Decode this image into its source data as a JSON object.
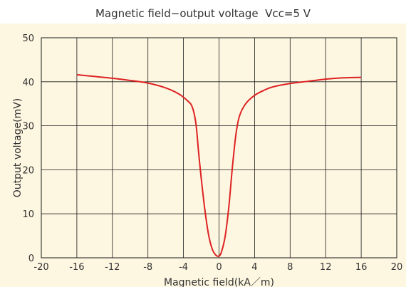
{
  "chart_data": {
    "type": "line",
    "title": "Magnetic field−output voltage  Vcc=5 V",
    "xlabel": "Magnetic field(kA／m)",
    "ylabel": "Output voltage(mV)",
    "xlim": [
      -20,
      20
    ],
    "ylim": [
      0,
      50
    ],
    "x_ticks": [
      -20,
      -16,
      -12,
      -8,
      -4,
      0,
      4,
      8,
      12,
      16,
      20
    ],
    "y_ticks": [
      0,
      10,
      20,
      30,
      40,
      50
    ],
    "grid": true,
    "series": [
      {
        "color": "#dd2222",
        "points": [
          [
            -16,
            41.6
          ],
          [
            -14,
            41.2
          ],
          [
            -12,
            40.8
          ],
          [
            -10,
            40.3
          ],
          [
            -8,
            39.7
          ],
          [
            -6,
            38.6
          ],
          [
            -4.5,
            37.2
          ],
          [
            -3.5,
            35.6
          ],
          [
            -3,
            34.2
          ],
          [
            -2.6,
            30.5
          ],
          [
            -2.3,
            24
          ],
          [
            -2,
            18
          ],
          [
            -1.6,
            11
          ],
          [
            -1.2,
            5.5
          ],
          [
            -0.8,
            2.2
          ],
          [
            -0.4,
            0.7
          ],
          [
            0,
            0.4
          ],
          [
            0.3,
            1.5
          ],
          [
            0.7,
            5
          ],
          [
            1.1,
            11.5
          ],
          [
            1.5,
            20.5
          ],
          [
            1.9,
            28
          ],
          [
            2.3,
            32.2
          ],
          [
            3,
            35
          ],
          [
            4,
            36.9
          ],
          [
            5,
            38
          ],
          [
            6,
            38.8
          ],
          [
            8,
            39.6
          ],
          [
            10,
            40.1
          ],
          [
            12,
            40.6
          ],
          [
            14,
            40.9
          ],
          [
            16,
            41.0
          ]
        ]
      }
    ]
  },
  "colors": {
    "plot_background": "#fdf6e1",
    "grid": "#1a1a1a",
    "line": "#dd2222"
  }
}
